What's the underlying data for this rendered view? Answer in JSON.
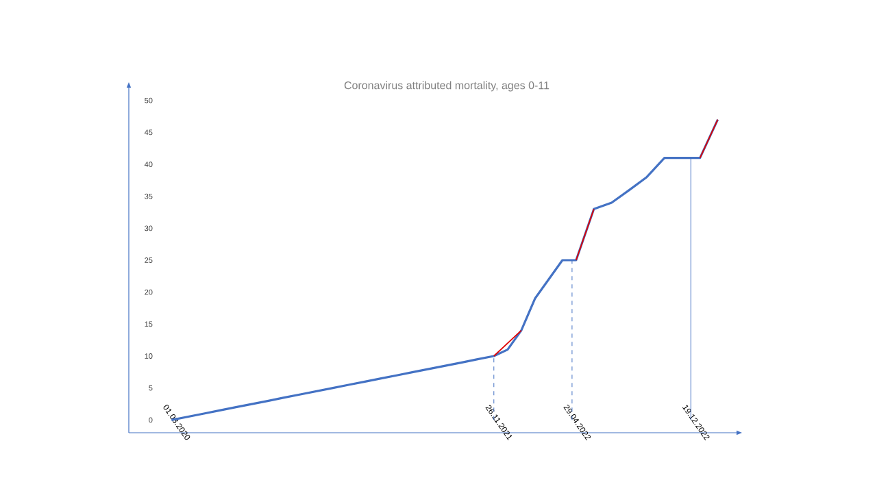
{
  "chart_data": {
    "type": "line",
    "title": "Coronavirus attributed mortality, ages 0-11",
    "x": [
      "2020-03-01",
      "2020-04-02",
      "2020-05-04",
      "2020-06-04",
      "2020-07-06",
      "2020-08-07",
      "2020-09-08",
      "2020-10-09",
      "2020-11-10",
      "2020-12-12",
      "2021-01-13",
      "2021-02-13",
      "2021-03-17",
      "2021-04-18",
      "2021-05-20",
      "2021-06-20",
      "2021-07-22",
      "2021-08-23",
      "2021-09-24",
      "2021-10-25",
      "2021-11-26",
      "2021-12-23",
      "2022-01-19",
      "2022-02-15",
      "2022-03-14",
      "2022-04-10",
      "2022-05-07",
      "2022-06-11",
      "2022-07-16",
      "2022-08-20",
      "2022-09-23",
      "2022-10-28",
      "2022-12-02",
      "2023-01-06",
      "2023-02-10"
    ],
    "series": [
      {
        "color": "#4472c4",
        "values": [
          0,
          0.5,
          1,
          1.5,
          2,
          2.5,
          3,
          3.5,
          4,
          4.5,
          5,
          5.5,
          6,
          6.5,
          7,
          7.5,
          8,
          8.5,
          9,
          9.5,
          10,
          11,
          14,
          19,
          22,
          25,
          25,
          33,
          34,
          36,
          38,
          41,
          41,
          41,
          47
        ]
      },
      {
        "color": "#e00000",
        "x": [
          "2021-11-26",
          "2022-01-19"
        ],
        "values": [
          10,
          14
        ]
      },
      {
        "color": "#e00000",
        "x": [
          "2022-05-07",
          "2022-06-11"
        ],
        "values": [
          25,
          33
        ]
      },
      {
        "color": "#e00000",
        "x": [
          "2023-01-06",
          "2023-02-10"
        ],
        "values": [
          41,
          47
        ]
      }
    ],
    "xlim": [
      "2019-12-08",
      "2023-03-19"
    ],
    "xticks": [
      {
        "value": "2020-03-01",
        "label": "01.03.2020"
      },
      {
        "value": "2021-11-26",
        "label": "26.11.2021"
      },
      {
        "value": "2022-04-29",
        "label": "29.04.2022"
      },
      {
        "value": "2022-12-19",
        "label": "19.12.2022"
      }
    ],
    "ylim": [
      -2,
      52
    ],
    "yticks": [
      0,
      5,
      10,
      15,
      20,
      25,
      30,
      35,
      40,
      45,
      50
    ],
    "ref_lines": [
      {
        "axis": "x",
        "value": "2021-11-26",
        "color": "#4472c4",
        "line_style": "dashed"
      },
      {
        "axis": "x",
        "value": "2022-04-29",
        "color": "#4472c4",
        "line_style": "dashed"
      },
      {
        "axis": "x",
        "value": "2022-12-19",
        "color": "#4472c4",
        "line_style": "solid"
      }
    ]
  }
}
